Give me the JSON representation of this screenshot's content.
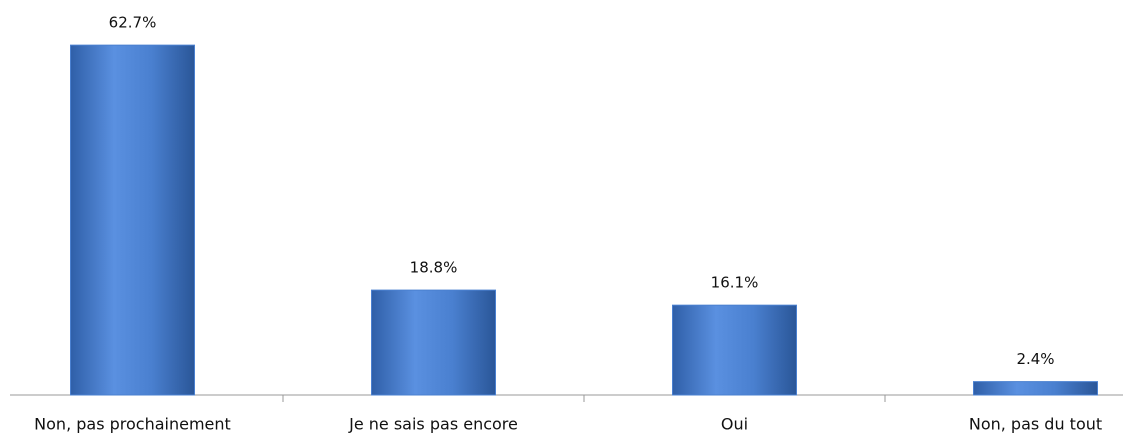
{
  "chart_data": {
    "type": "bar",
    "categories": [
      "Non, pas prochainement",
      "Je ne sais pas encore",
      "Oui",
      "Non, pas du tout"
    ],
    "values": [
      62.7,
      18.8,
      16.1,
      2.4
    ],
    "value_labels": [
      "62.7%",
      "18.8%",
      "16.1%",
      "2.4%"
    ],
    "color": "#4a80d0"
  }
}
